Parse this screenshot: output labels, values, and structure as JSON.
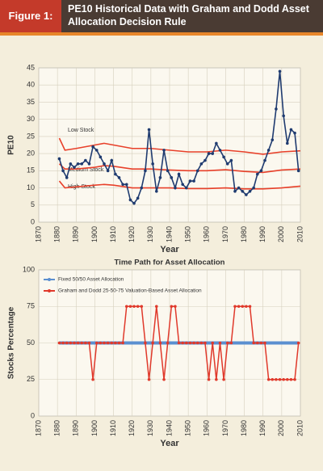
{
  "header": {
    "label": "Figure 1:",
    "title": "PE10 Historical Data with Graham and Dodd Asset Allocation Decision Rule"
  },
  "chart_data": [
    {
      "type": "line",
      "ylabel": "PE10",
      "xlabel": "Year",
      "xlim": [
        1870,
        2010
      ],
      "xticks": [
        1870,
        1880,
        1890,
        1900,
        1910,
        1920,
        1930,
        1940,
        1950,
        1960,
        1970,
        1980,
        1990,
        2000,
        2010
      ],
      "ylim": [
        0,
        45
      ],
      "yticks": [
        0,
        5,
        10,
        15,
        20,
        25,
        30,
        35,
        40,
        45
      ],
      "grid": true,
      "annotations": [
        "Low Stock",
        "Medium Stock",
        "High Stock"
      ],
      "x": [
        1881,
        1883,
        1885,
        1887,
        1889,
        1891,
        1893,
        1895,
        1897,
        1899,
        1901,
        1903,
        1905,
        1907,
        1909,
        1911,
        1913,
        1915,
        1917,
        1919,
        1921,
        1923,
        1925,
        1927,
        1929,
        1931,
        1933,
        1935,
        1937,
        1939,
        1941,
        1943,
        1945,
        1947,
        1949,
        1951,
        1953,
        1955,
        1957,
        1959,
        1961,
        1963,
        1965,
        1967,
        1969,
        1971,
        1973,
        1975,
        1977,
        1979,
        1981,
        1983,
        1985,
        1987,
        1989,
        1991,
        1993,
        1995,
        1997,
        1999,
        2001,
        2003,
        2005,
        2007,
        2009
      ],
      "series": [
        {
          "color": "#e8402a",
          "x": [
            1881,
            1884,
            1890,
            1900,
            1905,
            1910,
            1920,
            1930,
            1940,
            1950,
            1960,
            1970,
            1980,
            1990,
            2000,
            2010
          ],
          "values": [
            24.5,
            21,
            21.5,
            22.5,
            23,
            22.5,
            21.5,
            21.5,
            21,
            20.5,
            20.5,
            21,
            20.5,
            19.8,
            20.5,
            20.8
          ]
        },
        {
          "color": "#e8402a",
          "x": [
            1881,
            1884,
            1890,
            1900,
            1905,
            1910,
            1920,
            1930,
            1940,
            1950,
            1960,
            1970,
            1980,
            1990,
            2000,
            2010
          ],
          "values": [
            17,
            15.5,
            15.5,
            16,
            16.5,
            16.3,
            15.5,
            15.5,
            15.2,
            15,
            15,
            15.3,
            14.8,
            14.5,
            15.2,
            15.5
          ]
        },
        {
          "color": "#e8402a",
          "x": [
            1881,
            1884,
            1890,
            1900,
            1905,
            1910,
            1920,
            1930,
            1940,
            1950,
            1960,
            1970,
            1980,
            1990,
            2000,
            2010
          ],
          "values": [
            12,
            10,
            10.3,
            10.8,
            11,
            10.8,
            10,
            10,
            10,
            9.8,
            9.8,
            10,
            9.7,
            9.7,
            10,
            10.5
          ]
        },
        {
          "color": "#1f3b70",
          "markers": true,
          "values": [
            18.5,
            15,
            13,
            17,
            16,
            17,
            17,
            18,
            17,
            22,
            21,
            19,
            17,
            15,
            18,
            14,
            13,
            11,
            11,
            6.5,
            5.5,
            7,
            10,
            15,
            27,
            17,
            9,
            13,
            21,
            15,
            13,
            10,
            14,
            11,
            10,
            12,
            12,
            15,
            17,
            18,
            20,
            20,
            23,
            21,
            19,
            17,
            18,
            9,
            10,
            9,
            8,
            9,
            10,
            14,
            15,
            18,
            21,
            24,
            33,
            44,
            31,
            23,
            27,
            26,
            15
          ]
        }
      ]
    },
    {
      "type": "line",
      "title": "Time Path for Asset Allocation",
      "ylabel": "Stocks Percentage",
      "xlabel": "Year",
      "xlim": [
        1870,
        2010
      ],
      "xticks": [
        1870,
        1880,
        1890,
        1900,
        1910,
        1920,
        1930,
        1940,
        1950,
        1960,
        1970,
        1980,
        1990,
        2000,
        2010
      ],
      "ylim": [
        0,
        100
      ],
      "yticks": [
        0,
        25,
        50,
        75,
        100
      ],
      "grid": true,
      "legend": "top-left",
      "x": [
        1881,
        1883,
        1885,
        1887,
        1889,
        1891,
        1893,
        1895,
        1897,
        1899,
        1901,
        1903,
        1905,
        1907,
        1909,
        1911,
        1913,
        1915,
        1917,
        1919,
        1921,
        1923,
        1925,
        1927,
        1929,
        1931,
        1933,
        1935,
        1937,
        1939,
        1941,
        1943,
        1945,
        1947,
        1949,
        1951,
        1953,
        1955,
        1957,
        1959,
        1961,
        1963,
        1965,
        1967,
        1969,
        1971,
        1973,
        1975,
        1977,
        1979,
        1981,
        1983,
        1985,
        1987,
        1989,
        1991,
        1993,
        1995,
        1997,
        1999,
        2001,
        2003,
        2005,
        2007,
        2009
      ],
      "series": [
        {
          "name": "Fixed 50/50 Asset Allocation",
          "color": "#5b8fd0",
          "width": 4,
          "values": [
            50,
            50,
            50,
            50,
            50,
            50,
            50,
            50,
            50,
            50,
            50,
            50,
            50,
            50,
            50,
            50,
            50,
            50,
            50,
            50,
            50,
            50,
            50,
            50,
            50,
            50,
            50,
            50,
            50,
            50,
            50,
            50,
            50,
            50,
            50,
            50,
            50,
            50,
            50,
            50,
            50,
            50,
            50,
            50,
            50,
            50,
            50,
            50,
            50,
            50,
            50,
            50,
            50,
            50,
            50,
            50,
            50,
            50,
            50,
            50,
            50,
            50,
            50,
            50,
            50
          ]
        },
        {
          "name": "Graham and Dodd 25-50-75 Valuation-Based Asset Allocation",
          "color": "#e0392b",
          "width": 1.5,
          "markers": true,
          "values": [
            50,
            50,
            50,
            50,
            50,
            50,
            50,
            50,
            50,
            25,
            50,
            50,
            50,
            50,
            50,
            50,
            50,
            50,
            75,
            75,
            75,
            75,
            75,
            50,
            25,
            50,
            75,
            50,
            25,
            50,
            75,
            75,
            50,
            50,
            50,
            50,
            50,
            50,
            50,
            50,
            25,
            50,
            25,
            50,
            25,
            50,
            50,
            75,
            75,
            75,
            75,
            75,
            50,
            50,
            50,
            50,
            25,
            25,
            25,
            25,
            25,
            25,
            25,
            25,
            50
          ]
        }
      ]
    }
  ]
}
